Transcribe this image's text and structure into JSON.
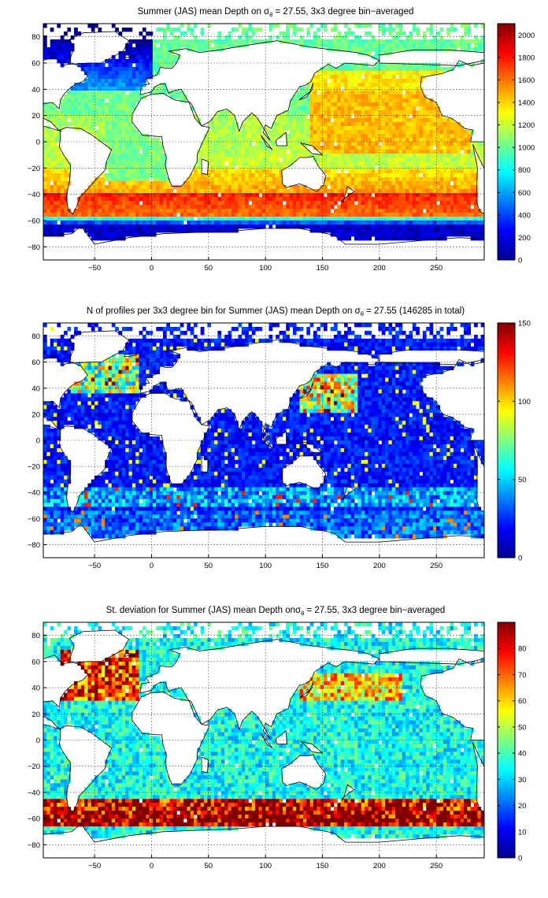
{
  "chart_data": [
    {
      "type": "heatmap",
      "title": {
        "pre": "Summer (JAS) mean Depth on ",
        "sym": "σ",
        "sub": "θ",
        "post": " = 27.55, 3x3 degree bin−averaged"
      },
      "xlim": [
        -95,
        292
      ],
      "ylim": [
        -90,
        90
      ],
      "xticks": [
        -50,
        0,
        50,
        100,
        150,
        200,
        250
      ],
      "yticks": [
        -80,
        -60,
        -40,
        -20,
        0,
        20,
        40,
        60,
        80
      ],
      "colorbar": {
        "min": 0,
        "max": 2100,
        "ticks": [
          0,
          200,
          400,
          600,
          800,
          1000,
          1200,
          1400,
          1600,
          1800,
          2000
        ]
      },
      "grid": true,
      "field": "mean_depth"
    },
    {
      "type": "heatmap",
      "title": {
        "pre": "N of profiles per 3x3 degree bin for Summer (JAS) mean Depth on ",
        "sym": "σ",
        "sub": "θ",
        "post": " = 27.55 (146285 in total)"
      },
      "xlim": [
        -95,
        292
      ],
      "ylim": [
        -90,
        90
      ],
      "xticks": [
        -50,
        0,
        50,
        100,
        150,
        200,
        250
      ],
      "yticks": [
        -80,
        -60,
        -40,
        -20,
        0,
        20,
        40,
        60,
        80
      ],
      "colorbar": {
        "min": 0,
        "max": 150,
        "ticks": [
          0,
          50,
          100,
          150
        ]
      },
      "grid": true,
      "field": "profile_count"
    },
    {
      "type": "heatmap",
      "title": {
        "pre": "St. deviation for Summer (JAS) mean Depth on",
        "sym": "σ",
        "sub": "θ",
        "post": " = 27.55, 3x3 degree bin−averaged"
      },
      "xlim": [
        -95,
        292
      ],
      "ylim": [
        -90,
        90
      ],
      "xticks": [
        -50,
        0,
        50,
        100,
        150,
        200,
        250
      ],
      "yticks": [
        -80,
        -60,
        -40,
        -20,
        0,
        20,
        40,
        60,
        80
      ],
      "colorbar": {
        "min": 0,
        "max": 90,
        "ticks": [
          0,
          10,
          20,
          30,
          40,
          50,
          60,
          70,
          80
        ]
      },
      "grid": true,
      "field": "std_depth"
    }
  ],
  "colormap": "jet"
}
